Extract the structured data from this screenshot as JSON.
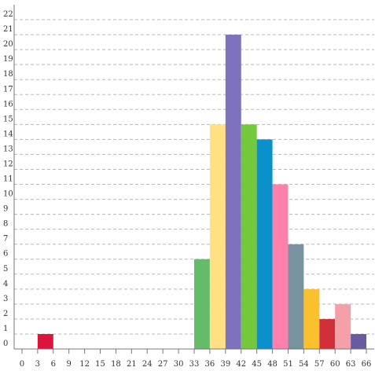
{
  "chart_data": {
    "type": "bar",
    "title": "",
    "xlabel": "",
    "ylabel": "",
    "grid": true,
    "legend": "none",
    "xlim": [
      -1.5,
      67.5
    ],
    "ylim": [
      0,
      23
    ],
    "x_ticks": [
      "0",
      "3",
      "6",
      "9",
      "12",
      "15",
      "18",
      "21",
      "24",
      "27",
      "30",
      "33",
      "36",
      "39",
      "42",
      "45",
      "48",
      "51",
      "54",
      "57",
      "60",
      "63",
      "66"
    ],
    "y_ticks": [
      "0",
      "1",
      "2",
      "3",
      "4",
      "5",
      "6",
      "7",
      "8",
      "9",
      "10",
      "11",
      "12",
      "13",
      "14",
      "15",
      "16",
      "17",
      "18",
      "19",
      "20",
      "21",
      "22"
    ],
    "bars": [
      {
        "x0": 3,
        "x1": 6,
        "value": 1,
        "color": "#dc143c"
      },
      {
        "x0": 33,
        "x1": 36,
        "value": 6,
        "color": "#66bb6a"
      },
      {
        "x0": 36,
        "x1": 39,
        "value": 15,
        "color": "#ffe082"
      },
      {
        "x0": 39,
        "x1": 42,
        "value": 21,
        "color": "#7e72be"
      },
      {
        "x0": 42,
        "x1": 45,
        "value": 15,
        "color": "#74c83c"
      },
      {
        "x0": 45,
        "x1": 48,
        "value": 14,
        "color": "#0a91cc"
      },
      {
        "x0": 48,
        "x1": 51,
        "value": 11,
        "color": "#ff80ab"
      },
      {
        "x0": 51,
        "x1": 54,
        "value": 7,
        "color": "#7893a0"
      },
      {
        "x0": 54,
        "x1": 57,
        "value": 4,
        "color": "#fbc02d"
      },
      {
        "x0": 57,
        "x1": 60,
        "value": 2,
        "color": "#d0303a"
      },
      {
        "x0": 60,
        "x1": 63,
        "value": 3,
        "color": "#f5a0a8"
      },
      {
        "x0": 63,
        "x1": 66,
        "value": 1,
        "color": "#6a5a9e"
      }
    ]
  }
}
